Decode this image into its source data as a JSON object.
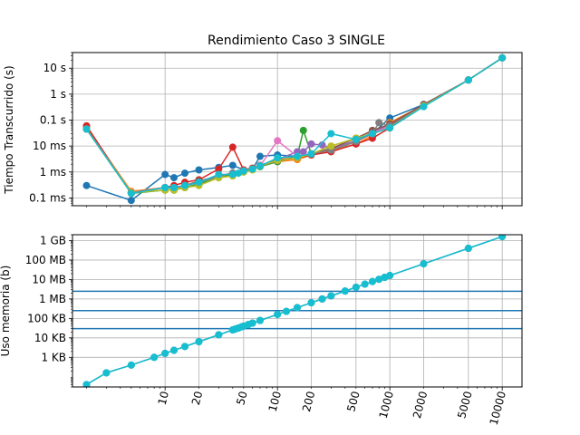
{
  "figure": {
    "title": "Rendimiento Caso 3 SINGLE",
    "colors": [
      "#1f77b4",
      "#ff7f0e",
      "#2ca02c",
      "#d62728",
      "#9467bd",
      "#8c564b",
      "#e377c2",
      "#7f7f7f",
      "#bcbd22",
      "#17becf"
    ],
    "hline_color": "#1f77b4",
    "grid": true
  },
  "chart_data": [
    {
      "type": "line",
      "name": "time",
      "title": "Rendimiento Caso 3 SINGLE",
      "ylabel": "Tiempo Transcurrido (s)",
      "xlabel": "",
      "xscale": "log",
      "yscale": "log",
      "xlim": [
        1.5,
        15000
      ],
      "ylim": [
        5e-05,
        40
      ],
      "xticks": [
        10,
        100,
        1000,
        10000
      ],
      "yticks": [
        {
          "v": 10,
          "label": "10 s"
        },
        {
          "v": 1,
          "label": "1 s"
        },
        {
          "v": 0.1,
          "label": "0.1 s"
        },
        {
          "v": 0.01,
          "label": "10 ms"
        },
        {
          "v": 0.001,
          "label": "1 ms"
        },
        {
          "v": 0.0001,
          "label": "0.1 ms"
        }
      ],
      "series": [
        {
          "points": [
            [
              2,
              0.0003
            ],
            [
              5,
              8e-05
            ],
            [
              10,
              0.0008
            ],
            [
              12,
              0.0006
            ],
            [
              15,
              0.0009
            ],
            [
              20,
              0.0012
            ],
            [
              30,
              0.0015
            ],
            [
              40,
              0.0018
            ],
            [
              50,
              0.0012
            ],
            [
              60,
              0.0013
            ],
            [
              70,
              0.004
            ],
            [
              100,
              0.0045
            ],
            [
              150,
              0.004
            ],
            [
              200,
              0.005
            ],
            [
              300,
              0.0065
            ],
            [
              500,
              0.015
            ],
            [
              700,
              0.03
            ],
            [
              1000,
              0.12
            ],
            [
              2000,
              0.4
            ],
            [
              5000,
              3.5
            ],
            [
              10000,
              25
            ]
          ]
        },
        {
          "points": [
            [
              2,
              0.05
            ],
            [
              5,
              0.00018
            ],
            [
              10,
              0.00025
            ],
            [
              12,
              0.00022
            ],
            [
              15,
              0.0003
            ],
            [
              20,
              0.0004
            ],
            [
              30,
              0.0007
            ],
            [
              40,
              0.0009
            ],
            [
              50,
              0.0012
            ],
            [
              60,
              0.0014
            ],
            [
              70,
              0.0018
            ],
            [
              100,
              0.0025
            ],
            [
              150,
              0.003
            ],
            [
              200,
              0.0045
            ],
            [
              300,
              0.0065
            ],
            [
              500,
              0.012
            ],
            [
              700,
              0.025
            ],
            [
              1000,
              0.08
            ],
            [
              2000,
              0.38
            ],
            [
              5000,
              3.5
            ],
            [
              10000,
              25
            ]
          ]
        },
        {
          "points": [
            [
              2,
              0.045
            ],
            [
              5,
              0.00015
            ],
            [
              10,
              0.0002
            ],
            [
              12,
              0.0002
            ],
            [
              15,
              0.00025
            ],
            [
              20,
              0.00035
            ],
            [
              30,
              0.0006
            ],
            [
              40,
              0.0008
            ],
            [
              50,
              0.001
            ],
            [
              60,
              0.0013
            ],
            [
              70,
              0.0016
            ],
            [
              100,
              0.0025
            ],
            [
              150,
              0.004
            ],
            [
              170,
              0.04
            ],
            [
              200,
              0.005
            ],
            [
              300,
              0.007
            ],
            [
              500,
              0.015
            ],
            [
              700,
              0.03
            ],
            [
              1000,
              0.06
            ],
            [
              2000,
              0.35
            ],
            [
              5000,
              3.5
            ],
            [
              10000,
              25
            ]
          ]
        },
        {
          "points": [
            [
              2,
              0.06
            ],
            [
              5,
              0.00015
            ],
            [
              10,
              0.00025
            ],
            [
              12,
              0.0003
            ],
            [
              15,
              0.0004
            ],
            [
              20,
              0.0005
            ],
            [
              30,
              0.0013
            ],
            [
              40,
              0.009
            ],
            [
              50,
              0.0012
            ],
            [
              60,
              0.0014
            ],
            [
              70,
              0.0018
            ],
            [
              100,
              0.003
            ],
            [
              150,
              0.0035
            ],
            [
              200,
              0.0045
            ],
            [
              300,
              0.006
            ],
            [
              500,
              0.012
            ],
            [
              700,
              0.02
            ],
            [
              1000,
              0.05
            ],
            [
              2000,
              0.35
            ],
            [
              5000,
              3.5
            ],
            [
              10000,
              25
            ]
          ]
        },
        {
          "points": [
            [
              2,
              0.045
            ],
            [
              5,
              0.00016
            ],
            [
              10,
              0.00025
            ],
            [
              12,
              0.00025
            ],
            [
              15,
              0.0003
            ],
            [
              20,
              0.0004
            ],
            [
              30,
              0.0007
            ],
            [
              40,
              0.0009
            ],
            [
              50,
              0.0011
            ],
            [
              60,
              0.0013
            ],
            [
              70,
              0.0018
            ],
            [
              100,
              0.003
            ],
            [
              150,
              0.006
            ],
            [
              170,
              0.006
            ],
            [
              200,
              0.012
            ],
            [
              250,
              0.011
            ],
            [
              300,
              0.008
            ],
            [
              500,
              0.016
            ],
            [
              700,
              0.035
            ],
            [
              1000,
              0.07
            ],
            [
              2000,
              0.36
            ],
            [
              5000,
              3.5
            ],
            [
              10000,
              25
            ]
          ]
        },
        {
          "points": [
            [
              2,
              0.045
            ],
            [
              5,
              0.00016
            ],
            [
              10,
              0.00025
            ],
            [
              12,
              0.00025
            ],
            [
              15,
              0.0003
            ],
            [
              20,
              0.00045
            ],
            [
              30,
              0.0007
            ],
            [
              40,
              0.0009
            ],
            [
              50,
              0.0011
            ],
            [
              60,
              0.0013
            ],
            [
              70,
              0.0017
            ],
            [
              100,
              0.0028
            ],
            [
              150,
              0.0035
            ],
            [
              200,
              0.005
            ],
            [
              300,
              0.008
            ],
            [
              500,
              0.02
            ],
            [
              700,
              0.04
            ],
            [
              1000,
              0.07
            ],
            [
              2000,
              0.4
            ],
            [
              5000,
              3.5
            ],
            [
              10000,
              25
            ]
          ]
        },
        {
          "points": [
            [
              2,
              0.045
            ],
            [
              5,
              0.00016
            ],
            [
              10,
              0.00025
            ],
            [
              12,
              0.00025
            ],
            [
              15,
              0.0003
            ],
            [
              20,
              0.0004
            ],
            [
              30,
              0.0007
            ],
            [
              40,
              0.0009
            ],
            [
              50,
              0.0011
            ],
            [
              60,
              0.0013
            ],
            [
              70,
              0.0017
            ],
            [
              100,
              0.016
            ],
            [
              150,
              0.004
            ],
            [
              200,
              0.005
            ],
            [
              300,
              0.007
            ],
            [
              500,
              0.015
            ],
            [
              700,
              0.03
            ],
            [
              1000,
              0.06
            ],
            [
              2000,
              0.35
            ],
            [
              5000,
              3.5
            ],
            [
              10000,
              25
            ]
          ]
        },
        {
          "points": [
            [
              2,
              0.045
            ],
            [
              5,
              0.00016
            ],
            [
              10,
              0.00025
            ],
            [
              12,
              0.00025
            ],
            [
              15,
              0.0003
            ],
            [
              20,
              0.0004
            ],
            [
              30,
              0.0007
            ],
            [
              40,
              0.0009
            ],
            [
              50,
              0.0011
            ],
            [
              60,
              0.0013
            ],
            [
              70,
              0.0017
            ],
            [
              100,
              0.0027
            ],
            [
              150,
              0.0035
            ],
            [
              200,
              0.005
            ],
            [
              300,
              0.007
            ],
            [
              500,
              0.015
            ],
            [
              700,
              0.03
            ],
            [
              800,
              0.08
            ],
            [
              1000,
              0.06
            ],
            [
              2000,
              0.35
            ],
            [
              5000,
              3.5
            ],
            [
              10000,
              25
            ]
          ]
        },
        {
          "points": [
            [
              2,
              0.045
            ],
            [
              5,
              0.00016
            ],
            [
              10,
              0.0002
            ],
            [
              12,
              0.0002
            ],
            [
              15,
              0.00025
            ],
            [
              20,
              0.0003
            ],
            [
              30,
              0.0006
            ],
            [
              40,
              0.0007
            ],
            [
              50,
              0.001
            ],
            [
              60,
              0.0012
            ],
            [
              70,
              0.0017
            ],
            [
              100,
              0.0028
            ],
            [
              150,
              0.0035
            ],
            [
              200,
              0.005
            ],
            [
              300,
              0.01
            ],
            [
              500,
              0.02
            ],
            [
              700,
              0.03
            ],
            [
              1000,
              0.05
            ],
            [
              2000,
              0.35
            ],
            [
              5000,
              3.5
            ],
            [
              10000,
              25
            ]
          ]
        },
        {
          "points": [
            [
              2,
              0.045
            ],
            [
              5,
              0.00015
            ],
            [
              10,
              0.00025
            ],
            [
              12,
              0.00025
            ],
            [
              15,
              0.0003
            ],
            [
              20,
              0.0004
            ],
            [
              30,
              0.0008
            ],
            [
              40,
              0.0008
            ],
            [
              45,
              0.0009
            ],
            [
              50,
              0.0011
            ],
            [
              60,
              0.0013
            ],
            [
              70,
              0.0017
            ],
            [
              100,
              0.0035
            ],
            [
              150,
              0.004
            ],
            [
              200,
              0.005
            ],
            [
              300,
              0.03
            ],
            [
              500,
              0.018
            ],
            [
              700,
              0.03
            ],
            [
              1000,
              0.05
            ],
            [
              2000,
              0.33
            ],
            [
              5000,
              3.5
            ],
            [
              10000,
              25
            ]
          ]
        }
      ]
    },
    {
      "type": "line",
      "name": "memory",
      "title": "",
      "ylabel": "Uso memoria (b)",
      "xlabel": "",
      "xscale": "log",
      "yscale": "log",
      "xlim": [
        1.5,
        15000
      ],
      "ylim": [
        30,
        2000000000
      ],
      "xticks": [
        10,
        20,
        50,
        100,
        200,
        500,
        1000,
        2000,
        5000,
        10000
      ],
      "yticks": [
        {
          "v": 1000000000,
          "label": "1 GB"
        },
        {
          "v": 100000000,
          "label": "100 MB"
        },
        {
          "v": 10000000,
          "label": "10 MB"
        },
        {
          "v": 1000000,
          "label": "1 MB"
        },
        {
          "v": 100000,
          "label": "100 KB"
        },
        {
          "v": 10000,
          "label": "10 KB"
        },
        {
          "v": 1000,
          "label": "1 KB"
        }
      ],
      "hlines": [
        2500000,
        250000,
        30000
      ],
      "x": [
        2,
        3,
        5,
        8,
        10,
        12,
        15,
        20,
        30,
        40,
        42,
        45,
        48,
        50,
        55,
        60,
        70,
        100,
        120,
        150,
        200,
        250,
        300,
        400,
        500,
        600,
        700,
        800,
        900,
        1000,
        2000,
        5000,
        10000
      ],
      "series": [
        {
          "values": [
            40,
            160,
            400,
            1000,
            1600,
            2300,
            3600,
            6400,
            14400,
            25600,
            28224,
            32400,
            36864,
            40000,
            48400,
            57600,
            78400,
            160000,
            230400,
            360000,
            640000,
            1000000,
            1440000,
            2560000,
            4000000,
            5760000,
            7840000,
            10240000,
            12960000,
            16000000,
            64000000,
            400000000,
            1600000000
          ]
        }
      ]
    }
  ]
}
